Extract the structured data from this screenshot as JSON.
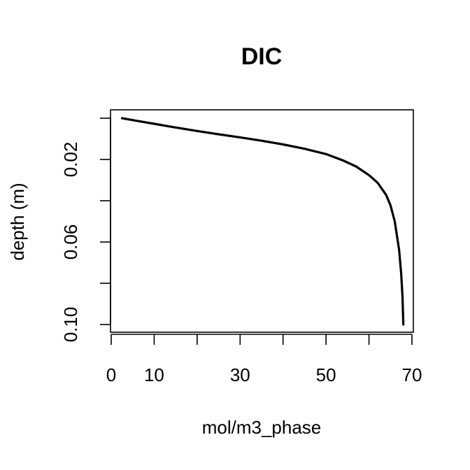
{
  "chart_data": {
    "type": "line",
    "title": "DIC",
    "xlabel": "mol/m3_phase",
    "ylabel": "depth (m)",
    "xlim": [
      0,
      70
    ],
    "ylim": [
      0.1,
      0.0
    ],
    "y_reversed": true,
    "grid": false,
    "legend": "none",
    "x_ticks": [
      0,
      10,
      20,
      30,
      40,
      50,
      60,
      70
    ],
    "x_tick_labels": [
      "0",
      "10",
      "",
      "30",
      "",
      "50",
      "",
      "70"
    ],
    "y_ticks": [
      0.0,
      0.02,
      0.04,
      0.06,
      0.08,
      0.1
    ],
    "y_tick_labels": [
      "",
      "0.02",
      "",
      "0.06",
      "",
      "0.10"
    ],
    "series": [
      {
        "color": "#000000",
        "x": [
          2.5,
          6,
          10,
          15,
          20,
          25,
          30,
          35,
          40,
          45,
          50,
          54,
          57,
          60,
          62,
          64,
          65,
          66,
          67,
          67.5,
          67.8,
          68
        ],
        "y": [
          0.0,
          0.0013,
          0.0027,
          0.0045,
          0.0062,
          0.0078,
          0.0093,
          0.0109,
          0.0127,
          0.0148,
          0.0174,
          0.0205,
          0.0234,
          0.0276,
          0.0313,
          0.0372,
          0.0422,
          0.05,
          0.0637,
          0.0753,
          0.0865,
          0.1
        ]
      }
    ]
  }
}
